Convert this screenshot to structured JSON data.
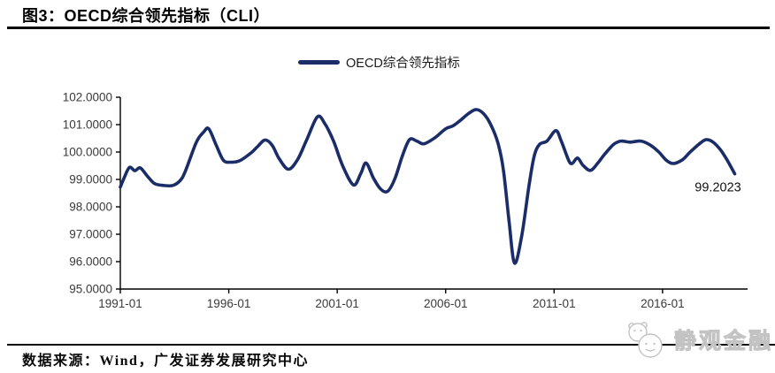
{
  "figure": {
    "title": "图3：OECD综合领先指标（CLI）",
    "source_note": "数据来源：Wind，广发证券发展研究中心",
    "watermark_text": "静观金融"
  },
  "legend": {
    "label": "OECD综合领先指标"
  },
  "colors": {
    "line": "#1b2d68",
    "axis": "#000000",
    "tick_text": "#3a3a3a",
    "annotation_text": "#111111",
    "rule": "#000000",
    "watermark": "#c3c3c3"
  },
  "chart_data": {
    "type": "line",
    "title": "OECD综合领先指标",
    "xlabel": "",
    "ylabel": "",
    "grid": false,
    "legend_position": "top-center",
    "ylim": [
      95,
      102
    ],
    "xlim": [
      1991.0,
      2019.92
    ],
    "yticks": [
      102,
      101,
      100,
      99,
      98,
      97,
      96,
      95
    ],
    "ytick_labels": [
      "102.0000",
      "101.0000",
      "100.0000",
      "99.0000",
      "98.0000",
      "97.0000",
      "96.0000",
      "95.0000"
    ],
    "xticks": [
      1991.0,
      1996.0,
      2001.0,
      2006.0,
      2011.0,
      2016.0
    ],
    "xtick_labels": [
      "1991-01",
      "1996-01",
      "2001-01",
      "2006-01",
      "2011-01",
      "2016-01"
    ],
    "annotation": {
      "text": "99.2023"
    },
    "series": [
      {
        "name": "OECD综合领先指标",
        "color": "#1b2d68",
        "points": [
          [
            1991.0,
            98.72
          ],
          [
            1991.17,
            99.05
          ],
          [
            1991.42,
            99.44
          ],
          [
            1991.67,
            99.32
          ],
          [
            1991.92,
            99.42
          ],
          [
            1992.25,
            99.12
          ],
          [
            1992.58,
            98.85
          ],
          [
            1993.0,
            98.78
          ],
          [
            1993.42,
            98.78
          ],
          [
            1993.75,
            98.95
          ],
          [
            1994.0,
            99.3
          ],
          [
            1994.5,
            100.35
          ],
          [
            1994.83,
            100.72
          ],
          [
            1995.08,
            100.85
          ],
          [
            1995.42,
            100.25
          ],
          [
            1995.75,
            99.7
          ],
          [
            1996.08,
            99.63
          ],
          [
            1996.5,
            99.68
          ],
          [
            1997.0,
            99.95
          ],
          [
            1997.33,
            100.2
          ],
          [
            1997.67,
            100.44
          ],
          [
            1998.0,
            100.25
          ],
          [
            1998.33,
            99.75
          ],
          [
            1998.75,
            99.37
          ],
          [
            1999.17,
            99.72
          ],
          [
            1999.58,
            100.42
          ],
          [
            2000.08,
            101.28
          ],
          [
            2000.42,
            101.05
          ],
          [
            2000.83,
            100.4
          ],
          [
            2001.25,
            99.5
          ],
          [
            2001.75,
            98.8
          ],
          [
            2002.08,
            99.2
          ],
          [
            2002.33,
            99.6
          ],
          [
            2002.67,
            99.05
          ],
          [
            2003.0,
            98.65
          ],
          [
            2003.33,
            98.57
          ],
          [
            2003.67,
            99.05
          ],
          [
            2004.0,
            99.85
          ],
          [
            2004.33,
            100.45
          ],
          [
            2004.67,
            100.4
          ],
          [
            2005.0,
            100.3
          ],
          [
            2005.5,
            100.52
          ],
          [
            2006.0,
            100.85
          ],
          [
            2006.33,
            100.95
          ],
          [
            2006.67,
            101.15
          ],
          [
            2007.08,
            101.42
          ],
          [
            2007.42,
            101.55
          ],
          [
            2007.75,
            101.4
          ],
          [
            2008.08,
            101.0
          ],
          [
            2008.42,
            100.3
          ],
          [
            2008.67,
            99.3
          ],
          [
            2008.92,
            97.5
          ],
          [
            2009.17,
            95.95
          ],
          [
            2009.5,
            96.9
          ],
          [
            2009.83,
            98.7
          ],
          [
            2010.08,
            99.85
          ],
          [
            2010.33,
            100.28
          ],
          [
            2010.67,
            100.4
          ],
          [
            2011.08,
            100.78
          ],
          [
            2011.33,
            100.4
          ],
          [
            2011.67,
            99.7
          ],
          [
            2011.83,
            99.58
          ],
          [
            2012.08,
            99.78
          ],
          [
            2012.33,
            99.52
          ],
          [
            2012.67,
            99.33
          ],
          [
            2013.0,
            99.58
          ],
          [
            2013.33,
            99.92
          ],
          [
            2013.75,
            100.28
          ],
          [
            2014.08,
            100.4
          ],
          [
            2014.5,
            100.36
          ],
          [
            2015.0,
            100.4
          ],
          [
            2015.42,
            100.26
          ],
          [
            2015.83,
            100.0
          ],
          [
            2016.17,
            99.7
          ],
          [
            2016.5,
            99.58
          ],
          [
            2016.92,
            99.72
          ],
          [
            2017.25,
            99.98
          ],
          [
            2017.67,
            100.28
          ],
          [
            2018.0,
            100.45
          ],
          [
            2018.33,
            100.36
          ],
          [
            2018.67,
            100.08
          ],
          [
            2019.0,
            99.68
          ],
          [
            2019.33,
            99.2023
          ]
        ]
      }
    ]
  }
}
